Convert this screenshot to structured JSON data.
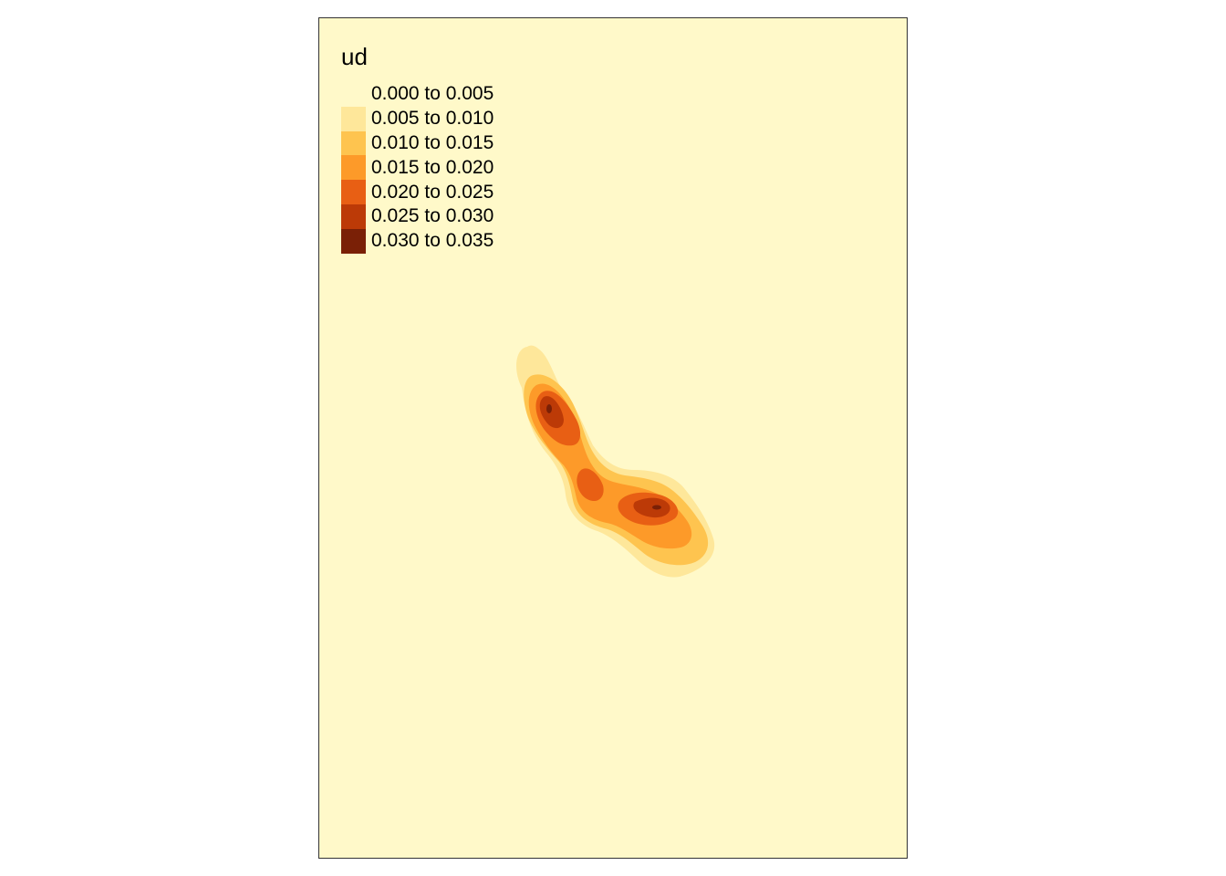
{
  "map": {
    "background_color": "#fff9c9",
    "legend": {
      "title": "ud",
      "items": [
        {
          "label": "0.000 to 0.005",
          "color": "#fff9c9"
        },
        {
          "label": "0.005 to 0.010",
          "color": "#fee79a"
        },
        {
          "label": "0.010 to 0.015",
          "color": "#fec44f"
        },
        {
          "label": "0.015 to 0.020",
          "color": "#fd9a29"
        },
        {
          "label": "0.020 to 0.025",
          "color": "#e85f14"
        },
        {
          "label": "0.025 to 0.030",
          "color": "#bc3a07"
        },
        {
          "label": "0.030 to 0.035",
          "color": "#7a2006"
        }
      ]
    }
  }
}
